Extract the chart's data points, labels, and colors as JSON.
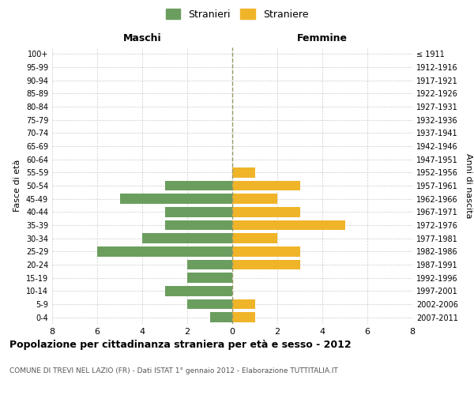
{
  "age_groups": [
    "0-4",
    "5-9",
    "10-14",
    "15-19",
    "20-24",
    "25-29",
    "30-34",
    "35-39",
    "40-44",
    "45-49",
    "50-54",
    "55-59",
    "60-64",
    "65-69",
    "70-74",
    "75-79",
    "80-84",
    "85-89",
    "90-94",
    "95-99",
    "100+"
  ],
  "birth_years": [
    "2007-2011",
    "2002-2006",
    "1997-2001",
    "1992-1996",
    "1987-1991",
    "1982-1986",
    "1977-1981",
    "1972-1976",
    "1967-1971",
    "1962-1966",
    "1957-1961",
    "1952-1956",
    "1947-1951",
    "1942-1946",
    "1937-1941",
    "1932-1936",
    "1927-1931",
    "1922-1926",
    "1917-1921",
    "1912-1916",
    "≤ 1911"
  ],
  "males": [
    1,
    2,
    3,
    2,
    2,
    6,
    4,
    3,
    3,
    5,
    3,
    0,
    0,
    0,
    0,
    0,
    0,
    0,
    0,
    0,
    0
  ],
  "females": [
    1,
    1,
    0,
    0,
    3,
    3,
    2,
    5,
    3,
    2,
    3,
    1,
    0,
    0,
    0,
    0,
    0,
    0,
    0,
    0,
    0
  ],
  "male_color": "#6b9e5e",
  "female_color": "#f0b429",
  "title": "Popolazione per cittadinanza straniera per età e sesso - 2012",
  "subtitle": "COMUNE DI TREVI NEL LAZIO (FR) - Dati ISTAT 1° gennaio 2012 - Elaborazione TUTTITALIA.IT",
  "ylabel_left": "Fasce di età",
  "ylabel_right": "Anni di nascita",
  "xlabel_left": "Maschi",
  "xlabel_right": "Femmine",
  "legend_males": "Stranieri",
  "legend_females": "Straniere",
  "xlim": 8,
  "bg_color": "#ffffff",
  "grid_color": "#cccccc",
  "bar_height": 0.75
}
